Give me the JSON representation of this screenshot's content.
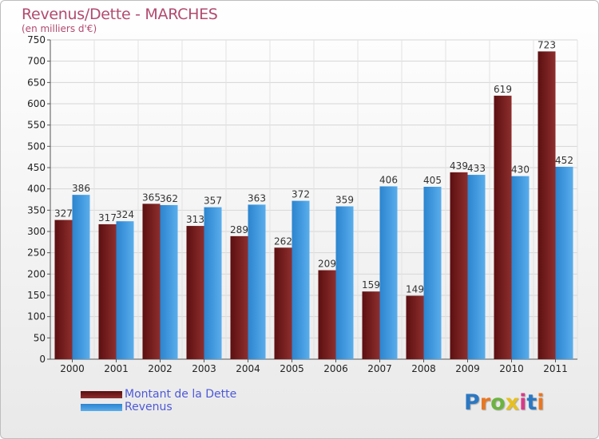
{
  "title": "Revenus/Dette - MARCHES",
  "subtitle": "(en milliers d'€)",
  "colors": {
    "dette": "#7a1f1f",
    "revenus": "#3a94dc",
    "text": "#b24a6f",
    "legend_text": "#4d59d8"
  },
  "legend": {
    "dette": "Montant de la Dette",
    "revenus": "Revenus"
  },
  "logo": {
    "text": "Proxiti",
    "letter_colors": [
      "#2b78c2",
      "#e87722",
      "#6cb33f",
      "#e8c01e",
      "#d63a8a",
      "#2b78c2",
      "#e87722"
    ]
  },
  "chart_data": {
    "type": "bar",
    "title": "Revenus/Dette - MARCHES",
    "subtitle": "(en milliers d'€)",
    "categories": [
      "2000",
      "2001",
      "2002",
      "2003",
      "2004",
      "2005",
      "2006",
      "2007",
      "2008",
      "2009",
      "2010",
      "2011"
    ],
    "series": [
      {
        "name": "Montant de la Dette",
        "color": "#7a1f1f",
        "values": [
          327,
          317,
          365,
          313,
          289,
          262,
          209,
          159,
          149,
          439,
          619,
          723
        ]
      },
      {
        "name": "Revenus",
        "color": "#3a94dc",
        "values": [
          386,
          324,
          362,
          357,
          363,
          372,
          359,
          406,
          405,
          433,
          430,
          452
        ]
      }
    ],
    "ylim": [
      0,
      750
    ],
    "yticks": [
      0,
      50,
      100,
      150,
      200,
      250,
      300,
      350,
      400,
      450,
      500,
      550,
      600,
      650,
      700,
      750
    ],
    "grid": true,
    "legend_position": "bottom-left"
  }
}
